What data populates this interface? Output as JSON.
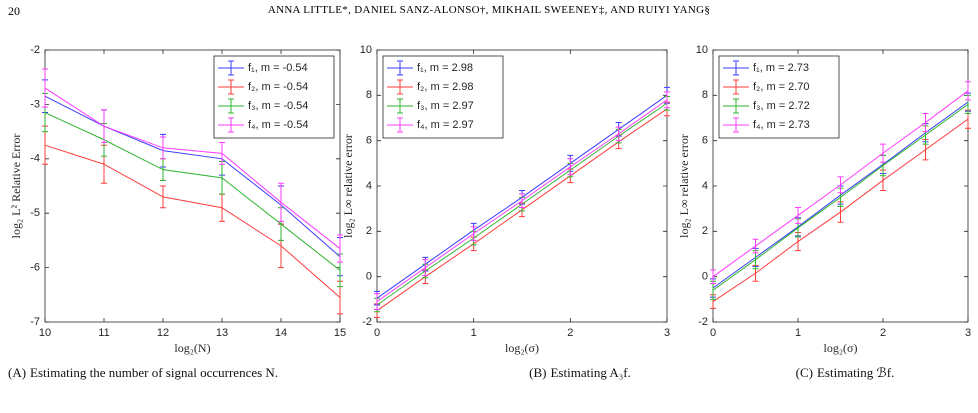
{
  "header": {
    "page_number": "20",
    "authors": "ANNA LITTLE*, DANIEL SANZ-ALONSO†, MIKHAIL SWEENEY‡, AND RUIYI YANG§"
  },
  "chart_data": [
    {
      "type": "line",
      "caption_tag": "(A)",
      "caption": "Estimating the number of signal occurrences N.",
      "xlabel": "log₂(N)",
      "ylabel": "log₂ L² Relative Error",
      "x": [
        10,
        11,
        12,
        13,
        14,
        15
      ],
      "xlim": [
        10,
        15
      ],
      "xticks": [
        10,
        11,
        12,
        13,
        14,
        15
      ],
      "ylim": [
        -7,
        -2
      ],
      "yticks": [
        -7,
        -6,
        -5,
        -4,
        -3,
        -2
      ],
      "legend": "upper right",
      "series": [
        {
          "name": "f₁,  m = -0.54",
          "color": "#3b3bff",
          "values": [
            -2.85,
            -3.4,
            -3.85,
            -4.0,
            -4.85,
            -5.8
          ],
          "errors": [
            0.3,
            0.3,
            0.3,
            0.3,
            0.35,
            0.35
          ]
        },
        {
          "name": "f₂,  m = -0.54",
          "color": "#ff3b3b",
          "values": [
            -3.75,
            -4.1,
            -4.7,
            -4.9,
            -5.6,
            -6.55
          ],
          "errors": [
            0.35,
            0.35,
            0.2,
            0.25,
            0.4,
            0.3
          ]
        },
        {
          "name": "f₃,  m = -0.54",
          "color": "#2fb52f",
          "values": [
            -3.15,
            -3.65,
            -4.2,
            -4.35,
            -5.2,
            -6.05
          ],
          "errors": [
            0.35,
            0.3,
            0.2,
            0.3,
            0.3,
            0.3
          ]
        },
        {
          "name": "f₄,  m = -0.54",
          "color": "#ff3bff",
          "values": [
            -2.7,
            -3.4,
            -3.8,
            -3.9,
            -4.8,
            -5.65
          ],
          "errors": [
            0.35,
            0.3,
            0.2,
            0.2,
            0.35,
            0.25
          ]
        }
      ]
    },
    {
      "type": "line",
      "caption_tag": "(B)",
      "caption": "Estimating A₃f.",
      "xlabel": "log₂(σ)",
      "ylabel": "log₂ L∞ relative error",
      "x": [
        0,
        0.5,
        1,
        1.5,
        2,
        2.5,
        3
      ],
      "xlim": [
        0,
        3
      ],
      "xticks": [
        0,
        1,
        2,
        3
      ],
      "ylim": [
        -2,
        10
      ],
      "yticks": [
        -2,
        0,
        2,
        4,
        6,
        8,
        10
      ],
      "legend": "upper left",
      "series": [
        {
          "name": "f₁,  m = 2.98",
          "color": "#3b3bff",
          "values": [
            -0.95,
            0.55,
            2.05,
            3.5,
            5.0,
            6.5,
            8.0
          ],
          "errors": [
            0.3,
            0.3,
            0.3,
            0.3,
            0.35,
            0.3,
            0.35
          ]
        },
        {
          "name": "f₂,  m = 2.98",
          "color": "#ff3b3b",
          "values": [
            -1.5,
            0.0,
            1.45,
            2.95,
            4.45,
            5.95,
            7.4
          ],
          "errors": [
            0.3,
            0.3,
            0.3,
            0.3,
            0.3,
            0.3,
            0.3
          ]
        },
        {
          "name": "f₃,  m = 2.97",
          "color": "#2fb52f",
          "values": [
            -1.25,
            0.25,
            1.7,
            3.2,
            4.7,
            6.2,
            7.65
          ],
          "errors": [
            0.3,
            0.3,
            0.3,
            0.3,
            0.3,
            0.3,
            0.3
          ]
        },
        {
          "name": "f₄,  m = 2.97",
          "color": "#ff3bff",
          "values": [
            -1.1,
            0.4,
            1.9,
            3.35,
            4.85,
            6.3,
            7.8
          ],
          "errors": [
            0.35,
            0.35,
            0.3,
            0.3,
            0.35,
            0.3,
            0.35
          ]
        }
      ]
    },
    {
      "type": "line",
      "caption_tag": "(C)",
      "caption": "Estimating ℬf.",
      "xlabel": "log₂(σ)",
      "ylabel": "log₂ L∞ relative error",
      "x": [
        0,
        0.5,
        1,
        1.5,
        2,
        2.5,
        3
      ],
      "xlim": [
        0,
        3
      ],
      "xticks": [
        0,
        1,
        2,
        3
      ],
      "ylim": [
        -2,
        10
      ],
      "yticks": [
        -2,
        0,
        2,
        4,
        6,
        8,
        10
      ],
      "legend": "upper left",
      "series": [
        {
          "name": "f₁,  m = 2.73",
          "color": "#3b3bff",
          "values": [
            -0.5,
            0.85,
            2.2,
            3.6,
            4.95,
            6.35,
            7.7
          ],
          "errors": [
            0.4,
            0.4,
            0.4,
            0.4,
            0.4,
            0.4,
            0.4
          ]
        },
        {
          "name": "f₂,  m = 2.70",
          "color": "#ff3b3b",
          "values": [
            -1.1,
            0.15,
            1.55,
            2.85,
            4.25,
            5.6,
            6.95
          ],
          "errors": [
            0.3,
            0.35,
            0.4,
            0.45,
            0.45,
            0.45,
            0.4
          ]
        },
        {
          "name": "f₃,  m = 2.72",
          "color": "#2fb52f",
          "values": [
            -0.6,
            0.75,
            2.15,
            3.5,
            4.9,
            6.25,
            7.6
          ],
          "errors": [
            0.4,
            0.4,
            0.4,
            0.4,
            0.45,
            0.4,
            0.4
          ]
        },
        {
          "name": "f₄,  m = 2.73",
          "color": "#ff3bff",
          "values": [
            0.0,
            1.35,
            2.7,
            4.05,
            5.45,
            6.8,
            8.2
          ],
          "errors": [
            0.3,
            0.3,
            0.35,
            0.35,
            0.4,
            0.4,
            0.4
          ]
        }
      ]
    }
  ]
}
